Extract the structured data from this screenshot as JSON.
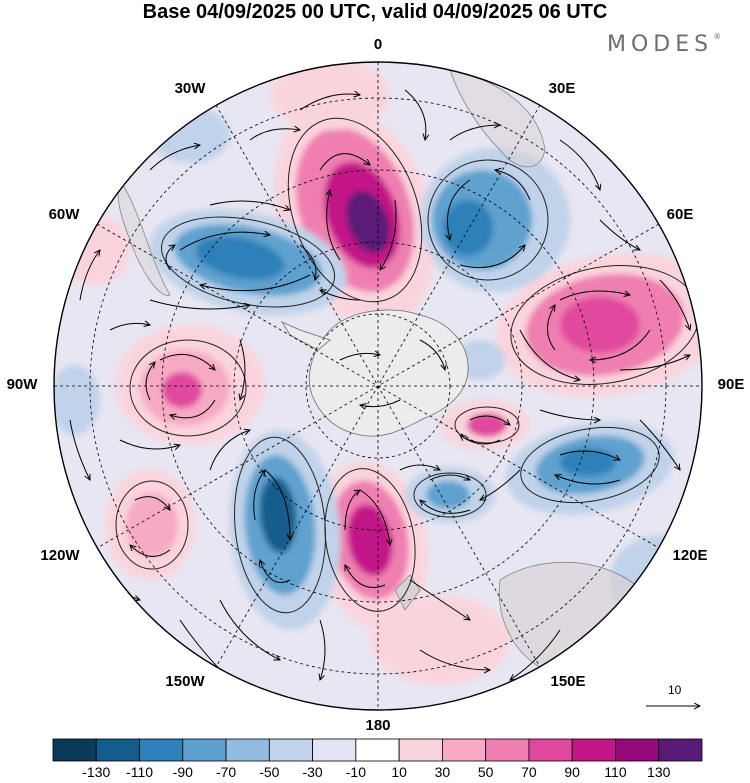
{
  "title": "Base 04/09/2025 00 UTC, valid 04/09/2025 06 UTC",
  "brand": {
    "name": "MODES",
    "mark": "®"
  },
  "longitude_labels": {
    "n": "0",
    "ne": "30E",
    "e60": "60E",
    "e90": "90E",
    "e120": "120E",
    "e150": "150E",
    "s": "180",
    "w150": "150W",
    "w120": "120W",
    "w90": "90W",
    "w60": "60W",
    "w30": "30W"
  },
  "reference_vector": {
    "label": "10"
  },
  "colorbar": {
    "colors": [
      "#0b3a5a",
      "#135d8c",
      "#2d80b8",
      "#5ea1cf",
      "#93bde0",
      "#c0d3ea",
      "#e2e4f2",
      "#ffffff",
      "#fad4dc",
      "#f6aac4",
      "#ef7fb1",
      "#e0489d",
      "#c21588",
      "#96097a",
      "#5a1a78"
    ],
    "labels": [
      "-130",
      "-110",
      "-90",
      "-70",
      "-50",
      "-30",
      "-10",
      "10",
      "30",
      "50",
      "70",
      "90",
      "110",
      "130"
    ]
  }
}
